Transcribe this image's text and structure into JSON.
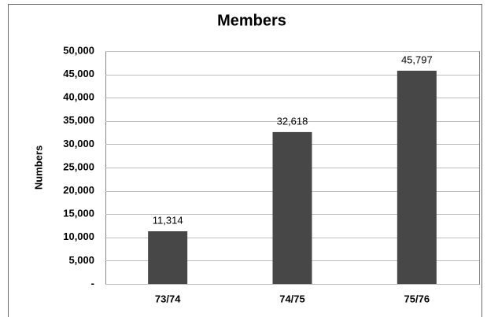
{
  "chart_data": {
    "type": "bar",
    "title": "Members",
    "y_label": "Numbers",
    "categories": [
      "73/74",
      "74/75",
      "75/76"
    ],
    "values": [
      11314,
      32618,
      45797
    ],
    "value_labels": [
      "11,314",
      "32,618",
      "45,797"
    ],
    "color": "#474747",
    "ylim": [
      0,
      50000
    ],
    "yticks": [
      {
        "value": 0,
        "label": "-"
      },
      {
        "value": 5000,
        "label": "5,000"
      },
      {
        "value": 10000,
        "label": "10,000"
      },
      {
        "value": 15000,
        "label": "15,000"
      },
      {
        "value": 20000,
        "label": "20,000"
      },
      {
        "value": 25000,
        "label": "25,000"
      },
      {
        "value": 30000,
        "label": "30,000"
      },
      {
        "value": 35000,
        "label": "35,000"
      },
      {
        "value": 40000,
        "label": "40,000"
      },
      {
        "value": 45000,
        "label": "45,000"
      },
      {
        "value": 50000,
        "label": "50,000"
      }
    ],
    "grid": true
  }
}
